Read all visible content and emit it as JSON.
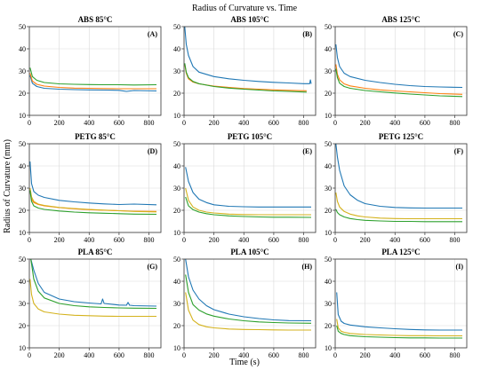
{
  "figure": {
    "title": "Radius of Curvature vs. Time",
    "xlabel": "Time (s)",
    "ylabel": "Radius of Curvature (mm)"
  },
  "colors": {
    "blue": "#1f77b4",
    "orange": "#ff7f0e",
    "green": "#2ca02c",
    "yellow": "#d4b21c",
    "grid": "#d9d9d9",
    "axis": "#333333"
  },
  "chart_data": [
    {
      "type": "line",
      "title": "ABS 85°C",
      "tag": "(A)",
      "xlim": [
        0,
        880
      ],
      "ylim": [
        10,
        50
      ],
      "xticks": [
        0,
        200,
        400,
        600,
        800
      ],
      "yticks": [
        10,
        20,
        30,
        40,
        50
      ],
      "grid": true,
      "series": [
        {
          "color": "blue",
          "x": [
            5,
            20,
            50,
            100,
            200,
            300,
            400,
            500,
            600,
            650,
            700,
            850
          ],
          "y": [
            28,
            24.5,
            23,
            22.2,
            21.8,
            21.6,
            21.5,
            21.4,
            21.3,
            20.8,
            21.2,
            21
          ]
        },
        {
          "color": "orange",
          "x": [
            5,
            20,
            50,
            100,
            200,
            300,
            400,
            500,
            600,
            700,
            850
          ],
          "y": [
            29,
            25.5,
            24,
            23.2,
            22.6,
            22.3,
            22.2,
            22.1,
            22,
            22,
            22
          ]
        },
        {
          "color": "green",
          "x": [
            5,
            20,
            50,
            100,
            200,
            300,
            400,
            500,
            600,
            700,
            850
          ],
          "y": [
            31.5,
            27.5,
            25.8,
            24.8,
            24.2,
            24,
            23.9,
            23.8,
            23.8,
            23.7,
            23.8
          ]
        }
      ]
    },
    {
      "type": "line",
      "title": "ABS 105°C",
      "tag": "(B)",
      "xlim": [
        0,
        880
      ],
      "ylim": [
        10,
        50
      ],
      "xticks": [
        0,
        200,
        400,
        600,
        800
      ],
      "yticks": [
        10,
        20,
        30,
        40,
        50
      ],
      "grid": true,
      "series": [
        {
          "color": "blue",
          "x": [
            5,
            15,
            30,
            60,
            100,
            200,
            300,
            400,
            500,
            600,
            700,
            800,
            840,
            845,
            850
          ],
          "y": [
            50,
            42,
            37,
            32,
            29.5,
            27.5,
            26.5,
            25.8,
            25.3,
            24.9,
            24.6,
            24.3,
            24.3,
            26,
            24.2
          ]
        },
        {
          "color": "orange",
          "x": [
            5,
            15,
            30,
            60,
            100,
            200,
            300,
            400,
            500,
            600,
            700,
            820
          ],
          "y": [
            33,
            29,
            26.5,
            25,
            24.2,
            23.2,
            22.6,
            22.1,
            21.8,
            21.5,
            21.3,
            21.1
          ]
        },
        {
          "color": "green",
          "x": [
            5,
            15,
            30,
            60,
            100,
            200,
            300,
            400,
            500,
            600,
            700,
            820
          ],
          "y": [
            33.5,
            29.5,
            27,
            25.3,
            24.3,
            23,
            22.3,
            21.8,
            21.4,
            21,
            20.8,
            20.5
          ]
        }
      ]
    },
    {
      "type": "line",
      "title": "ABS 125°C",
      "tag": "(C)",
      "xlim": [
        0,
        880
      ],
      "ylim": [
        10,
        50
      ],
      "xticks": [
        0,
        200,
        400,
        600,
        800
      ],
      "yticks": [
        10,
        20,
        30,
        40,
        50
      ],
      "grid": true,
      "series": [
        {
          "color": "blue",
          "x": [
            5,
            15,
            30,
            60,
            100,
            200,
            300,
            400,
            500,
            600,
            700,
            850
          ],
          "y": [
            42,
            36,
            32,
            29,
            27.5,
            25.8,
            24.8,
            24,
            23.4,
            23,
            22.8,
            22.6
          ]
        },
        {
          "color": "orange",
          "x": [
            5,
            15,
            30,
            60,
            100,
            200,
            300,
            400,
            500,
            600,
            700,
            850
          ],
          "y": [
            33,
            28.5,
            26,
            24.2,
            23.3,
            22.2,
            21.5,
            21,
            20.6,
            20.2,
            19.8,
            19.5
          ]
        },
        {
          "color": "green",
          "x": [
            5,
            15,
            30,
            60,
            100,
            200,
            300,
            400,
            500,
            600,
            700,
            850
          ],
          "y": [
            31,
            27,
            24.5,
            23,
            22.2,
            21.2,
            20.6,
            20.1,
            19.6,
            19.2,
            18.8,
            18.5
          ]
        }
      ]
    },
    {
      "type": "line",
      "title": "PETG 85°C",
      "tag": "(D)",
      "xlim": [
        0,
        880
      ],
      "ylim": [
        10,
        50
      ],
      "xticks": [
        0,
        200,
        400,
        600,
        800
      ],
      "yticks": [
        10,
        20,
        30,
        40,
        50
      ],
      "grid": true,
      "series": [
        {
          "color": "blue",
          "x": [
            5,
            15,
            30,
            60,
            100,
            200,
            300,
            400,
            500,
            600,
            700,
            850
          ],
          "y": [
            42,
            32,
            28.5,
            26.8,
            25.8,
            24.5,
            23.8,
            23.3,
            22.9,
            22.6,
            22.8,
            22.5
          ]
        },
        {
          "color": "orange",
          "x": [
            5,
            15,
            30,
            60,
            100,
            200,
            300,
            400,
            500,
            600,
            700,
            850
          ],
          "y": [
            29,
            25,
            23.5,
            22.6,
            22,
            21.2,
            20.7,
            20.3,
            20,
            19.8,
            19.6,
            19.5
          ]
        },
        {
          "color": "yellow",
          "x": [
            5,
            15,
            30,
            60,
            100,
            200,
            300,
            400,
            500,
            600,
            700,
            850
          ],
          "y": [
            30,
            26,
            24,
            22.8,
            22.2,
            21.3,
            20.8,
            20.4,
            20.1,
            19.8,
            19.5,
            19.3
          ]
        },
        {
          "color": "green",
          "x": [
            5,
            15,
            30,
            60,
            100,
            200,
            300,
            400,
            500,
            600,
            700,
            850
          ],
          "y": [
            29,
            24,
            22,
            21,
            20.4,
            19.7,
            19.2,
            18.9,
            18.7,
            18.5,
            18.3,
            18.2
          ]
        }
      ]
    },
    {
      "type": "line",
      "title": "PETG 105°C",
      "tag": "(E)",
      "xlim": [
        0,
        880
      ],
      "ylim": [
        10,
        50
      ],
      "xticks": [
        0,
        200,
        400,
        600,
        800
      ],
      "yticks": [
        10,
        20,
        30,
        40,
        50
      ],
      "grid": true,
      "series": [
        {
          "color": "blue",
          "x": [
            10,
            30,
            60,
            100,
            150,
            200,
            300,
            400,
            500,
            600,
            700,
            850
          ],
          "y": [
            39.5,
            33,
            28,
            25,
            23.5,
            22.5,
            21.8,
            21.6,
            21.5,
            21.5,
            21.5,
            21.5
          ]
        },
        {
          "color": "yellow",
          "x": [
            10,
            30,
            60,
            100,
            150,
            200,
            300,
            400,
            500,
            600,
            700,
            850
          ],
          "y": [
            30,
            24.5,
            21.5,
            20,
            19.2,
            18.8,
            18.3,
            18.1,
            18,
            18,
            18,
            18
          ]
        },
        {
          "color": "green",
          "x": [
            10,
            30,
            60,
            100,
            150,
            200,
            300,
            400,
            500,
            600,
            700,
            850
          ],
          "y": [
            26,
            22,
            20.3,
            19.2,
            18.5,
            18,
            17.5,
            17.2,
            17,
            16.9,
            16.9,
            16.8
          ]
        }
      ]
    },
    {
      "type": "line",
      "title": "PETG 125°C",
      "tag": "(F)",
      "xlim": [
        0,
        880
      ],
      "ylim": [
        10,
        50
      ],
      "xticks": [
        0,
        200,
        400,
        600,
        800
      ],
      "yticks": [
        10,
        20,
        30,
        40,
        50
      ],
      "grid": true,
      "series": [
        {
          "color": "blue",
          "x": [
            5,
            15,
            30,
            60,
            100,
            150,
            200,
            300,
            400,
            500,
            600,
            700,
            850
          ],
          "y": [
            50,
            44,
            38,
            31,
            27,
            24.5,
            23,
            21.8,
            21.3,
            21.1,
            21,
            21,
            21
          ]
        },
        {
          "color": "yellow",
          "x": [
            5,
            15,
            30,
            60,
            100,
            150,
            200,
            300,
            400,
            500,
            600,
            700,
            850
          ],
          "y": [
            28,
            24,
            21.5,
            19.5,
            18.3,
            17.5,
            17,
            16.5,
            16.3,
            16.2,
            16.2,
            16.2,
            16.2
          ]
        },
        {
          "color": "green",
          "x": [
            5,
            15,
            30,
            60,
            100,
            150,
            200,
            300,
            400,
            500,
            600,
            700,
            850
          ],
          "y": [
            20.5,
            19,
            18,
            17,
            16.3,
            15.8,
            15.5,
            15.2,
            15,
            15,
            14.9,
            14.9,
            14.9
          ]
        }
      ]
    },
    {
      "type": "line",
      "title": "PLA 85°C",
      "tag": "(G)",
      "xlim": [
        0,
        880
      ],
      "ylim": [
        10,
        50
      ],
      "xticks": [
        0,
        200,
        400,
        600,
        800
      ],
      "yticks": [
        10,
        20,
        30,
        40,
        50
      ],
      "grid": true,
      "series": [
        {
          "color": "blue",
          "x": [
            10,
            30,
            60,
            100,
            200,
            300,
            400,
            480,
            490,
            500,
            600,
            650,
            660,
            670,
            700,
            850
          ],
          "y": [
            50,
            45,
            39,
            35,
            32,
            30.8,
            30.2,
            29.8,
            32,
            30,
            29.3,
            29.2,
            30.5,
            29.2,
            29,
            28.8
          ]
        },
        {
          "color": "green",
          "x": [
            10,
            30,
            60,
            100,
            200,
            300,
            400,
            500,
            600,
            700,
            850
          ],
          "y": [
            50,
            41,
            35.5,
            32.5,
            30,
            29,
            28.5,
            28.2,
            28,
            27.9,
            27.8
          ]
        },
        {
          "color": "yellow",
          "x": [
            5,
            15,
            30,
            60,
            100,
            200,
            300,
            400,
            500,
            600,
            700,
            850
          ],
          "y": [
            41,
            34,
            30,
            27.5,
            26.2,
            25.2,
            24.7,
            24.5,
            24.3,
            24.2,
            24.2,
            24.2
          ]
        }
      ]
    },
    {
      "type": "line",
      "title": "PLA 105°C",
      "tag": "(H)",
      "xlim": [
        0,
        880
      ],
      "ylim": [
        10,
        50
      ],
      "xticks": [
        0,
        200,
        400,
        600,
        800
      ],
      "yticks": [
        10,
        20,
        30,
        40,
        50
      ],
      "grid": true,
      "series": [
        {
          "color": "blue",
          "x": [
            10,
            30,
            60,
            100,
            150,
            200,
            300,
            400,
            500,
            600,
            700,
            850
          ],
          "y": [
            50,
            42,
            36,
            32,
            29,
            27.2,
            25.2,
            24,
            23.2,
            22.6,
            22.3,
            22.2
          ]
        },
        {
          "color": "green",
          "x": [
            10,
            30,
            60,
            100,
            150,
            200,
            300,
            400,
            500,
            600,
            700,
            850
          ],
          "y": [
            43,
            35,
            29.5,
            27,
            25.3,
            24.3,
            23,
            22.2,
            21.7,
            21.4,
            21.2,
            21.1
          ]
        },
        {
          "color": "yellow",
          "x": [
            10,
            30,
            60,
            100,
            150,
            200,
            300,
            400,
            500,
            600,
            700,
            850
          ],
          "y": [
            35,
            27,
            22.5,
            20.5,
            19.5,
            19,
            18.5,
            18.3,
            18.2,
            18.1,
            18,
            18
          ]
        }
      ]
    },
    {
      "type": "line",
      "title": "PLA 125°C",
      "tag": "(I)",
      "xlim": [
        0,
        880
      ],
      "ylim": [
        10,
        50
      ],
      "xticks": [
        0,
        200,
        400,
        600,
        800
      ],
      "yticks": [
        10,
        20,
        30,
        40,
        50
      ],
      "grid": true,
      "series": [
        {
          "color": "blue",
          "x": [
            10,
            20,
            40,
            60,
            100,
            200,
            300,
            400,
            500,
            600,
            700,
            850
          ],
          "y": [
            35,
            25,
            22,
            21,
            20.3,
            19.5,
            19,
            18.6,
            18.3,
            18.1,
            18,
            18
          ]
        },
        {
          "color": "yellow",
          "x": [
            10,
            20,
            40,
            60,
            100,
            200,
            300,
            400,
            500,
            600,
            700,
            850
          ],
          "y": [
            23,
            19,
            17.5,
            17,
            16.5,
            16,
            15.8,
            15.6,
            15.5,
            15.5,
            15.4,
            15.4
          ]
        },
        {
          "color": "green",
          "x": [
            10,
            20,
            40,
            60,
            100,
            200,
            300,
            400,
            500,
            600,
            700,
            850
          ],
          "y": [
            20,
            17.5,
            16.5,
            16,
            15.5,
            15,
            14.8,
            14.6,
            14.5,
            14.5,
            14.4,
            14.4
          ]
        }
      ]
    }
  ]
}
